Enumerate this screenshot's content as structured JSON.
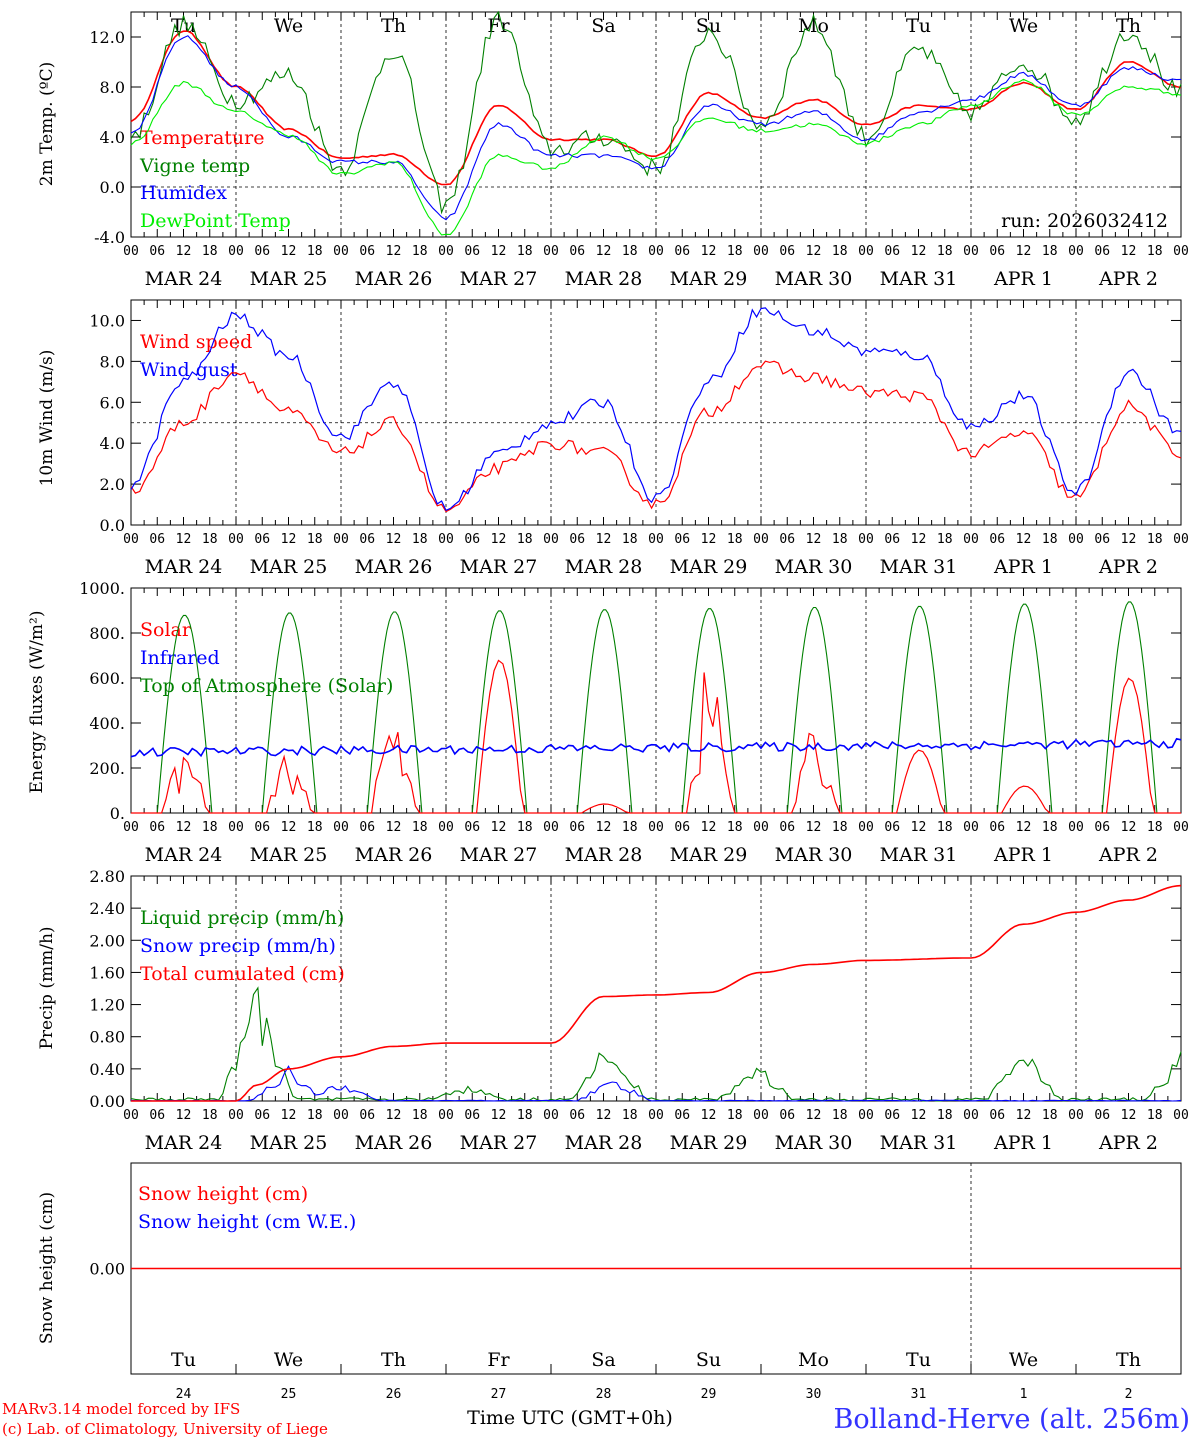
{
  "colors": {
    "red": "#ff0000",
    "green": "#008000",
    "blue": "#0000ff",
    "lightgreen": "#00ee00",
    "black": "#000000",
    "title_blue": "#3333ff"
  },
  "days_of_week": [
    {
      "label": "Tu",
      "color": "#000000"
    },
    {
      "label": "We",
      "color": "#000000"
    },
    {
      "label": "Th",
      "color": "#000000"
    },
    {
      "label": "Fr",
      "color": "#000000"
    },
    {
      "label": "Sa",
      "color": "#ff0000"
    },
    {
      "label": "Su",
      "color": "#ff0000"
    },
    {
      "label": "Mo",
      "color": "#000000"
    },
    {
      "label": "Tu",
      "color": "#000000"
    },
    {
      "label": "We",
      "color": "#000000"
    },
    {
      "label": "Th",
      "color": "#000000"
    }
  ],
  "dates": [
    "MAR 24",
    "MAR 25",
    "MAR 26",
    "MAR 27",
    "MAR 28",
    "MAR 29",
    "MAR 30",
    "MAR 31",
    "APR  1",
    "APR  2"
  ],
  "day_numbers": [
    "24",
    "25",
    "26",
    "27",
    "28",
    "29",
    "30",
    "31",
    "1",
    "2"
  ],
  "hour_ticks": [
    "00",
    "06",
    "12",
    "18"
  ],
  "hour_end": "00",
  "footer": {
    "model_line": "MARv3.14 model forced by IFS",
    "copyright_line": "(c) Lab. of Climatology, University of Liege",
    "time_label": "Time UTC (GMT+0h)",
    "station": "Bolland-Herve (alt. 256m)"
  },
  "chart_data": [
    {
      "type": "line",
      "title": "2m temperature",
      "ylabel": "2m Temp. (ºC)",
      "ylim": [
        -4,
        14
      ],
      "yticks": [
        "12.0",
        "8.0",
        "4.0",
        "0.0",
        "-4.0"
      ],
      "reference_line": 0,
      "annotation": "run: 2026032412",
      "x_days": [
        0,
        0.5,
        1,
        1.5,
        2,
        2.5,
        3,
        3.5,
        4,
        4.5,
        5,
        5.5,
        6,
        6.5,
        7,
        7.5,
        8,
        8.5,
        9,
        9.5,
        10
      ],
      "series": [
        {
          "name": "Temperature",
          "color": "#ff0000",
          "values": [
            5.3,
            12.5,
            8.0,
            4.6,
            2.3,
            2.6,
            0.2,
            6.5,
            3.8,
            3.8,
            2.5,
            7.5,
            5.5,
            7.0,
            5.0,
            6.5,
            6.2,
            8.3,
            6.2,
            10.0,
            8.0
          ]
        },
        {
          "name": "Vigne temp",
          "color": "#008000",
          "values": [
            4.0,
            13.0,
            7.0,
            9.0,
            1.5,
            11.0,
            -1.5,
            13.5,
            3.0,
            4.0,
            1.5,
            12.5,
            5.0,
            13.0,
            4.0,
            11.0,
            6.0,
            10.0,
            5.5,
            12.5,
            7.5
          ]
        },
        {
          "name": "Humidex",
          "color": "#0000ff",
          "values": [
            4.2,
            12.0,
            8.0,
            4.0,
            2.0,
            2.0,
            -2.5,
            5.0,
            2.5,
            2.5,
            1.5,
            6.5,
            5.0,
            6.0,
            3.8,
            6.0,
            7.0,
            9.0,
            6.5,
            9.5,
            8.5
          ]
        },
        {
          "name": "DewPoint Temp",
          "color": "#00ee00",
          "values": [
            3.5,
            8.3,
            6.0,
            4.2,
            1.0,
            2.0,
            -3.8,
            2.5,
            1.5,
            4.0,
            2.3,
            5.5,
            4.5,
            5.0,
            3.5,
            5.0,
            6.5,
            8.5,
            5.8,
            8.0,
            7.5
          ]
        }
      ]
    },
    {
      "type": "line",
      "title": "10m wind",
      "ylabel": "10m Wind (m/s)",
      "ylim": [
        0,
        11
      ],
      "yticks": [
        "10.0",
        "8.0",
        "6.0",
        "4.0",
        "2.0",
        "0.0"
      ],
      "reference_line": 5,
      "x_days": [
        0,
        0.5,
        1,
        1.5,
        2,
        2.5,
        3,
        3.5,
        4,
        4.5,
        5,
        5.5,
        6,
        6.5,
        7,
        7.5,
        8,
        8.5,
        9,
        9.5,
        10
      ],
      "series": [
        {
          "name": "Wind speed",
          "color": "#ff0000",
          "values": [
            1.6,
            5.0,
            7.5,
            5.5,
            3.5,
            5.0,
            0.7,
            2.8,
            4.0,
            3.5,
            1.0,
            5.5,
            7.8,
            7.2,
            6.5,
            6.3,
            3.5,
            4.5,
            1.3,
            5.8,
            3.4
          ]
        },
        {
          "name": "Wind gust",
          "color": "#0000ff",
          "values": [
            2.0,
            7.0,
            10.2,
            8.3,
            4.3,
            7.0,
            0.8,
            3.5,
            5.0,
            6.0,
            1.3,
            7.0,
            10.5,
            9.5,
            8.5,
            8.3,
            4.8,
            6.3,
            1.6,
            7.5,
            4.5
          ]
        }
      ]
    },
    {
      "type": "line",
      "title": "Energy fluxes",
      "ylabel": "Energy fluxes (W/m²)",
      "ylim": [
        0,
        1000
      ],
      "yticks": [
        "1000.",
        "800.",
        "600.",
        "400.",
        "200.",
        "0."
      ],
      "series": [
        {
          "name": "Solar",
          "color": "#ff0000",
          "daily_peak": [
            300,
            280,
            490,
            680,
            40,
            680,
            380,
            280,
            120,
            600
          ]
        },
        {
          "name": "Infrared",
          "color": "#0000ff",
          "level": 300
        },
        {
          "name": "Top of Atmosphere (Solar)",
          "color": "#008000",
          "daily_peak": [
            880,
            890,
            895,
            900,
            905,
            910,
            915,
            920,
            930,
            940
          ]
        }
      ]
    },
    {
      "type": "line",
      "title": "Precipitation",
      "ylabel": "Precip (mm/h)",
      "ylim": [
        0,
        2.8
      ],
      "yticks": [
        "2.80",
        "2.40",
        "2.00",
        "1.60",
        "1.20",
        "0.80",
        "0.40",
        "0.00"
      ],
      "x_days": [
        0,
        0.5,
        1,
        1.2,
        1.5,
        2,
        2.5,
        3,
        4,
        4.5,
        5,
        5.5,
        6,
        6.5,
        7,
        8,
        8.5,
        9,
        9.5,
        10
      ],
      "series": [
        {
          "name": "Liquid precip (mm/h)",
          "color": "#008000",
          "peaks": [
            [
              1.2,
              1.55
            ],
            [
              3.2,
              0.2
            ],
            [
              4.55,
              0.8
            ],
            [
              5.95,
              0.5
            ],
            [
              8.5,
              0.7
            ],
            [
              10,
              0.6
            ]
          ]
        },
        {
          "name": "Snow precip (mm/h)",
          "color": "#0000ff",
          "peaks": [
            [
              1.5,
              0.45
            ],
            [
              2.0,
              0.25
            ],
            [
              4.6,
              0.3
            ]
          ]
        },
        {
          "name": "Total cumulated (cm)",
          "color": "#ff0000",
          "values": [
            0,
            0,
            0,
            0.2,
            0.4,
            0.55,
            0.68,
            0.72,
            0.72,
            1.3,
            1.32,
            1.35,
            1.6,
            1.7,
            1.75,
            1.78,
            2.2,
            2.35,
            2.5,
            2.68
          ]
        }
      ]
    },
    {
      "type": "line",
      "title": "Snow height",
      "ylabel": "Snow height (cm)",
      "yticks": [
        "0.00"
      ],
      "series": [
        {
          "name": "Snow height (cm)",
          "color": "#ff0000",
          "value": 0
        },
        {
          "name": "Snow height (cm W.E.)",
          "color": "#0000ff",
          "value": 0
        }
      ]
    }
  ]
}
